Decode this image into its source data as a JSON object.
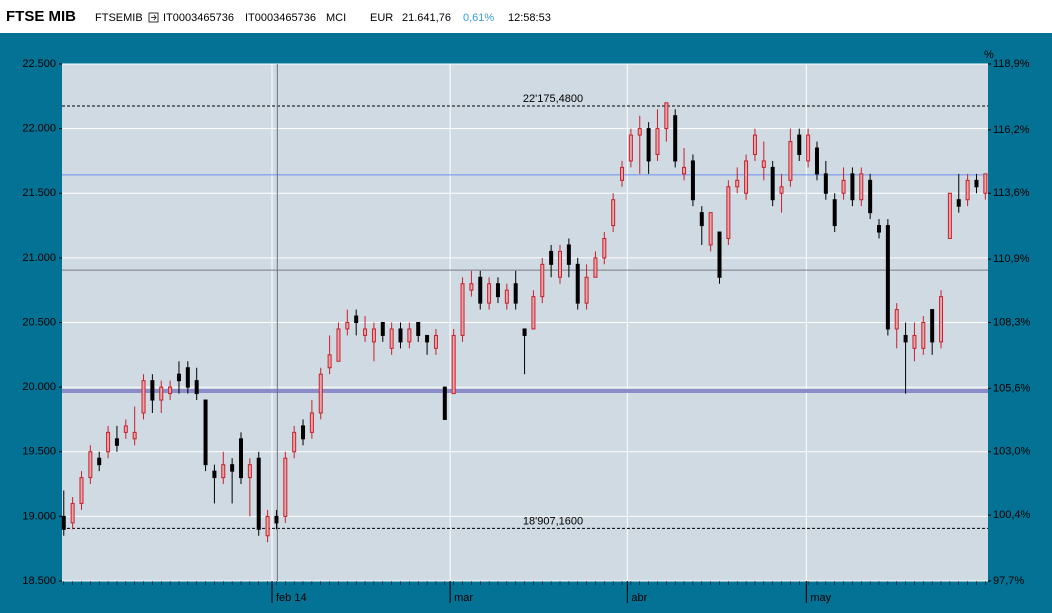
{
  "header": {
    "title": "FTSE MIB",
    "symbol": "FTSEMIB",
    "isin": "IT0003465736",
    "code": "IT0003465736",
    "market": "MCI",
    "currency": "EUR",
    "price": "21.641,76",
    "change": "0,61%",
    "time": "12:58:53"
  },
  "chart_data": {
    "type": "candlestick",
    "up_color": "#c8202c",
    "up_fill": "#e9a6aa",
    "down_color": "#000000",
    "grid": true,
    "open": [
      19000,
      18950,
      19100,
      19300,
      19450,
      19500,
      19600,
      19650,
      19600,
      19800,
      20050,
      19900,
      19950,
      20100,
      20150,
      20050,
      19900,
      19350,
      19300,
      19400,
      19600,
      19300,
      19450,
      18850,
      19000,
      19000,
      19500,
      19700,
      19650,
      19800,
      20150,
      20200,
      20450,
      20550,
      20400,
      20350,
      20500,
      20300,
      20450,
      20350,
      20500,
      20400,
      20300,
      20000,
      19950,
      20400,
      20750,
      20850,
      20650,
      20800,
      20650,
      20800,
      20450,
      20450,
      20700,
      21050,
      20850,
      21100,
      20950,
      20650,
      20850,
      21000,
      21250,
      21600,
      21750,
      21950,
      22000,
      21800,
      22000,
      22100,
      21650,
      21750,
      21350,
      21100,
      21200,
      21150,
      21550,
      21500,
      21800,
      21700,
      21700,
      21500,
      21600,
      21950,
      21750,
      21850,
      21650,
      21450,
      21500,
      21650,
      21450,
      21600,
      21250,
      21250,
      20450,
      20400,
      20300,
      20300,
      20600,
      20350,
      21150,
      21450,
      21450,
      21600,
      21500
    ],
    "high": [
      19200,
      19150,
      19350,
      19550,
      19500,
      19700,
      19700,
      19750,
      19850,
      20100,
      20100,
      20050,
      20050,
      20200,
      20200,
      20150,
      19900,
      19400,
      19500,
      19450,
      19650,
      19450,
      19500,
      19050,
      19050,
      19500,
      19700,
      19750,
      19900,
      20150,
      20400,
      20500,
      20600,
      20600,
      20550,
      20500,
      20500,
      20500,
      20500,
      20500,
      20500,
      20400,
      20450,
      20000,
      20450,
      20850,
      20900,
      20900,
      20850,
      20850,
      20800,
      20900,
      20450,
      20750,
      21000,
      21100,
      21100,
      21150,
      21000,
      20950,
      21050,
      21200,
      21500,
      21750,
      22000,
      22100,
      22050,
      22150,
      22200,
      22150,
      21850,
      21800,
      21400,
      21350,
      21200,
      21600,
      21700,
      21800,
      22000,
      21900,
      21750,
      21650,
      22000,
      22000,
      22000,
      21900,
      21750,
      21500,
      21700,
      21700,
      21700,
      21650,
      21300,
      21300,
      20650,
      20500,
      20500,
      20550,
      20600,
      20750,
      21500,
      21650,
      21650,
      21650,
      21650
    ],
    "low": [
      18850,
      18900,
      19050,
      19250,
      19350,
      19450,
      19500,
      19600,
      19550,
      19750,
      19800,
      19800,
      19900,
      19950,
      19950,
      19900,
      19350,
      19100,
      19250,
      19100,
      19250,
      19000,
      18850,
      18800,
      18900,
      18950,
      19450,
      19550,
      19600,
      19750,
      20100,
      20200,
      20400,
      20400,
      20350,
      20200,
      20350,
      20250,
      20300,
      20300,
      20350,
      20250,
      20250,
      19750,
      19950,
      20350,
      20700,
      20600,
      20600,
      20650,
      20600,
      20600,
      20100,
      20450,
      20650,
      20850,
      20800,
      20850,
      20600,
      20600,
      20850,
      20950,
      21200,
      21550,
      21700,
      21650,
      21650,
      21750,
      21900,
      21700,
      21600,
      21400,
      21100,
      21050,
      20800,
      21100,
      21500,
      21450,
      21750,
      21600,
      21400,
      21350,
      21550,
      21750,
      21700,
      21600,
      21450,
      21200,
      21450,
      21400,
      21400,
      21300,
      21150,
      20400,
      20300,
      19950,
      20200,
      20250,
      20250,
      20300,
      21150,
      21350,
      21400,
      21500,
      21450
    ],
    "close": [
      18900,
      19100,
      19300,
      19500,
      19400,
      19650,
      19550,
      19700,
      19650,
      20050,
      19900,
      20000,
      20000,
      20050,
      20000,
      19950,
      19400,
      19300,
      19400,
      19350,
      19300,
      19400,
      18900,
      19000,
      18950,
      19450,
      19650,
      19600,
      19800,
      20100,
      20250,
      20450,
      20500,
      20500,
      20450,
      20450,
      20400,
      20450,
      20350,
      20450,
      20400,
      20350,
      20400,
      19750,
      20400,
      20800,
      20800,
      20650,
      20800,
      20700,
      20750,
      20650,
      20400,
      20700,
      20950,
      20950,
      21050,
      20950,
      20650,
      20850,
      21000,
      21150,
      21450,
      21700,
      21950,
      22000,
      21750,
      22000,
      22200,
      21750,
      21700,
      21450,
      21250,
      21350,
      20850,
      21550,
      21600,
      21750,
      21950,
      21750,
      21450,
      21550,
      21900,
      21800,
      21950,
      21650,
      21500,
      21250,
      21600,
      21450,
      21650,
      21350,
      21200,
      20450,
      20600,
      20350,
      20400,
      20500,
      20350,
      20700,
      21500,
      21400,
      21600,
      21550,
      21650
    ],
    "xlim": [
      -0.2,
      104.3
    ],
    "xticks": [
      {
        "value": 23.5,
        "label": "feb 14"
      },
      {
        "value": 43.6,
        "label": "mar"
      },
      {
        "value": 63.6,
        "label": "abr"
      },
      {
        "value": 83.8,
        "label": "may"
      }
    ],
    "ylim": [
      18500,
      22500
    ],
    "yticks": [
      {
        "value": 18500,
        "label": "18.500"
      },
      {
        "value": 19000,
        "label": "19.000"
      },
      {
        "value": 19500,
        "label": "19.500"
      },
      {
        "value": 20000,
        "label": "20.000"
      },
      {
        "value": 20500,
        "label": "20.500"
      },
      {
        "value": 21000,
        "label": "21.000"
      },
      {
        "value": 21500,
        "label": "21.500"
      },
      {
        "value": 22000,
        "label": "22.000"
      },
      {
        "value": 22500,
        "label": "22.500"
      }
    ],
    "y2label": "%",
    "y2lim": [
      97.7,
      118.9
    ],
    "y2ticks": [
      {
        "value": 97.7,
        "label": "97,7%"
      },
      {
        "value": 100.4,
        "label": "100,4%"
      },
      {
        "value": 103.0,
        "label": "103,0%"
      },
      {
        "value": 105.6,
        "label": "105,6%"
      },
      {
        "value": 108.3,
        "label": "108,3%"
      },
      {
        "value": 110.9,
        "label": "110,9%"
      },
      {
        "value": 113.6,
        "label": "113,6%"
      },
      {
        "value": 116.2,
        "label": "116,2%"
      },
      {
        "value": 118.9,
        "label": "118,9%"
      }
    ],
    "levels": [
      {
        "value": 22175.48,
        "label": "22'175,4800"
      },
      {
        "value": 18907.16,
        "label": "18'907,1600"
      }
    ],
    "last_line": {
      "value": 21641.76,
      "color": "#6f8ff0"
    },
    "mid_line": {
      "value": 20905,
      "color": "#7a7a86"
    },
    "band_line": {
      "value": 19970,
      "color": "#8c8cc8"
    },
    "crosshair_x": 24.1
  }
}
